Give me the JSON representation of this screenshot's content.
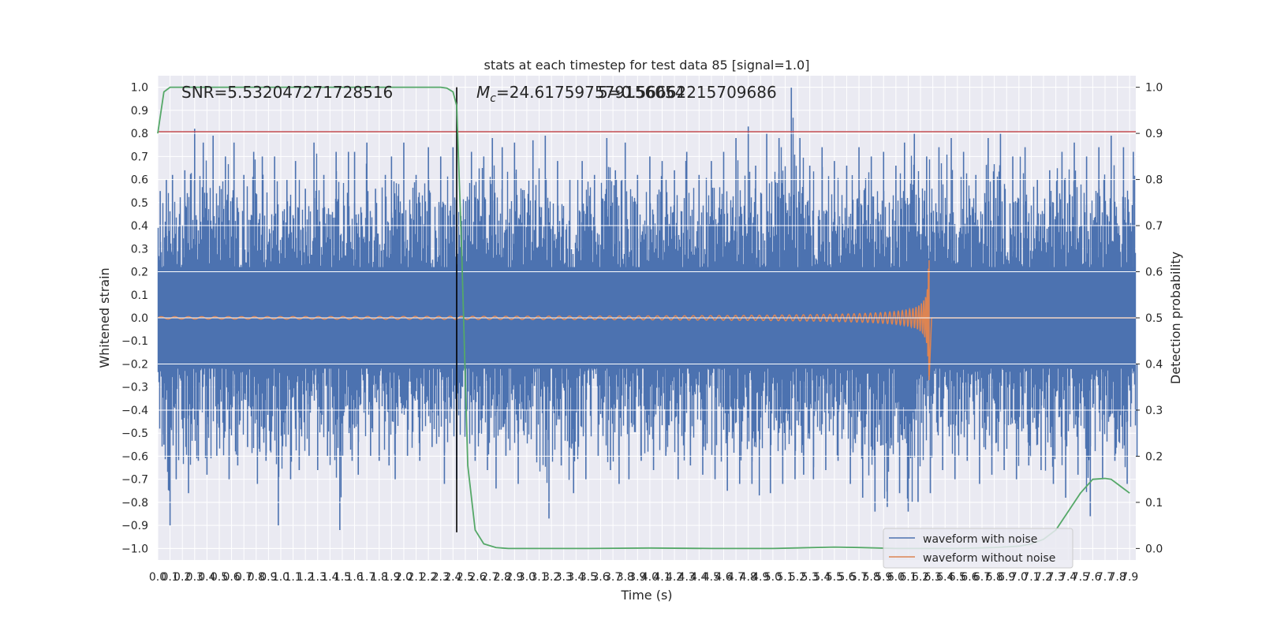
{
  "chart_data": {
    "type": "line",
    "title": "stats at each timestep for test data 85 [signal=1.0]",
    "xlabel": "Time (s)",
    "ylabel_left": "Whitened strain",
    "ylabel_right": "Detection probability",
    "xlim": [
      0.0,
      7.95
    ],
    "ylim_left": [
      -1.05,
      1.05
    ],
    "ylim_right": [
      -0.025,
      1.025
    ],
    "x_ticks": [
      0.0,
      0.1,
      0.2,
      0.3,
      0.4,
      0.5,
      0.6,
      0.7,
      0.8,
      0.9,
      1.0,
      1.1,
      1.2,
      1.3,
      1.4,
      1.5,
      1.6,
      1.7,
      1.8,
      1.9,
      2.0,
      2.1,
      2.2,
      2.3,
      2.4,
      2.5,
      2.6,
      2.7,
      2.8,
      2.9,
      3.0,
      3.1,
      3.2,
      3.3,
      3.4,
      3.5,
      3.6,
      3.7,
      3.8,
      3.9,
      4.0,
      4.1,
      4.2,
      4.3,
      4.4,
      4.5,
      4.6,
      4.7,
      4.8,
      4.9,
      5.0,
      5.1,
      5.2,
      5.3,
      5.4,
      5.5,
      5.6,
      5.7,
      5.8,
      5.9,
      6.0,
      6.1,
      6.2,
      6.3,
      6.4,
      6.5,
      6.6,
      6.7,
      6.8,
      6.9,
      7.0,
      7.1,
      7.2,
      7.3,
      7.4,
      7.5,
      7.6,
      7.7,
      7.8,
      7.9
    ],
    "y_ticks_left": [
      -1.0,
      -0.9,
      -0.8,
      -0.7,
      -0.6,
      -0.5,
      -0.4,
      -0.3,
      -0.2,
      -0.1,
      0.0,
      0.1,
      0.2,
      0.3,
      0.4,
      0.5,
      0.6,
      0.7,
      0.8,
      0.9,
      1.0
    ],
    "y_ticks_right": [
      0.0,
      0.1,
      0.2,
      0.3,
      0.4,
      0.5,
      0.6,
      0.7,
      0.8,
      0.9,
      1.0
    ],
    "grid": true,
    "legend_position": "lower-right",
    "annotations": {
      "snr": "SNR=5.532047271728516",
      "mc_prefix": "M",
      "mc_sub": "c",
      "mc_value": "=24.617597579156054",
      "overlap_value": "5=0.56662215709686"
    },
    "marker_time": 2.43,
    "threshold_left": 0.807,
    "series": [
      {
        "name": "waveform with noise",
        "color": "#4c72b0",
        "description_peaks_x": [
          0.02,
          0.07,
          0.12,
          0.22,
          0.3,
          0.37,
          0.45,
          0.55,
          0.62,
          0.7,
          0.78,
          0.85,
          0.95,
          1.05,
          1.12,
          1.2,
          1.27,
          1.35,
          1.45,
          1.55,
          1.6,
          1.7,
          1.77,
          1.85,
          1.9,
          2.0,
          2.1,
          2.2,
          2.3,
          2.4,
          2.55,
          2.65,
          2.72,
          2.8,
          2.9,
          3.05,
          3.15,
          3.25,
          3.35,
          3.45,
          3.55,
          3.65,
          3.72,
          3.8,
          3.9,
          4.0,
          4.1,
          4.2,
          4.3,
          4.4,
          4.5,
          4.6,
          4.7,
          4.8,
          4.86,
          4.95,
          5.05,
          5.15,
          5.22,
          5.3,
          5.4,
          5.5,
          5.6,
          5.7,
          5.8,
          5.9,
          6.0,
          6.07,
          6.15,
          6.25,
          6.35,
          6.45,
          6.55,
          6.65,
          6.75,
          6.85,
          6.95,
          7.05,
          7.15,
          7.25,
          7.35,
          7.45,
          7.55,
          7.65,
          7.75,
          7.85,
          7.93
        ],
        "description_peaks_top": [
          0.55,
          0.6,
          0.62,
          0.64,
          0.82,
          0.76,
          0.79,
          0.7,
          0.76,
          0.62,
          0.72,
          0.7,
          0.7,
          0.6,
          0.68,
          0.56,
          0.76,
          0.62,
          0.72,
          0.72,
          0.72,
          0.76,
          0.56,
          0.62,
          0.7,
          0.76,
          0.62,
          0.74,
          0.7,
          0.74,
          0.72,
          0.7,
          0.78,
          0.74,
          0.76,
          0.77,
          0.79,
          0.68,
          0.6,
          0.68,
          0.62,
          0.78,
          0.64,
          0.76,
          0.62,
          0.7,
          0.68,
          0.64,
          0.72,
          0.62,
          0.68,
          0.72,
          0.78,
          0.83,
          0.66,
          0.8,
          0.78,
          1.0,
          0.78,
          0.66,
          0.74,
          0.68,
          0.66,
          0.74,
          0.7,
          0.72,
          0.66,
          0.76,
          0.8,
          0.7,
          0.74,
          0.78,
          0.72,
          0.62,
          0.78,
          0.8,
          0.7,
          0.74,
          0.6,
          0.64,
          0.72,
          0.76,
          0.7,
          0.74,
          0.79,
          0.74,
          0.72
        ],
        "description_peaks_bottom": [
          -0.55,
          -0.9,
          -0.7,
          -0.76,
          -0.62,
          -0.68,
          -0.6,
          -0.7,
          -0.64,
          -0.56,
          -0.72,
          -0.62,
          -0.9,
          -0.7,
          -0.66,
          -0.6,
          -0.66,
          -0.6,
          -0.92,
          -0.62,
          -0.68,
          -0.6,
          -0.62,
          -0.64,
          -0.7,
          -0.6,
          -0.62,
          -0.56,
          -0.72,
          -0.7,
          -0.62,
          -0.66,
          -0.74,
          -0.6,
          -0.72,
          -0.6,
          -0.87,
          -0.64,
          -0.76,
          -0.7,
          -0.6,
          -0.66,
          -0.72,
          -0.7,
          -0.62,
          -0.66,
          -0.6,
          -0.7,
          -0.64,
          -0.68,
          -0.7,
          -0.75,
          -0.72,
          -0.72,
          -0.77,
          -0.76,
          -0.72,
          -0.7,
          -0.68,
          -0.7,
          -0.66,
          -0.62,
          -0.72,
          -0.78,
          -0.84,
          -0.82,
          -0.76,
          -0.84,
          -0.8,
          -0.76,
          -0.66,
          -0.7,
          -0.62,
          -0.72,
          -0.68,
          -0.66,
          -0.7,
          -0.64,
          -0.66,
          -0.72,
          -0.78,
          -0.68,
          -0.86,
          -0.7,
          -0.62,
          -0.72,
          -0.6
        ]
      },
      {
        "name": "waveform without noise",
        "color": "#dd8452",
        "chirp_start": 0.0,
        "chirp_end": 6.27,
        "amplitude_start": 0.005,
        "amplitude_peak": 0.25,
        "amplitude_trough": -0.27
      },
      {
        "name": "detection probability",
        "color": "#55a868",
        "axis": "right",
        "x": [
          0.0,
          0.05,
          0.1,
          0.2,
          0.5,
          1.0,
          1.5,
          2.0,
          2.2,
          2.3,
          2.35,
          2.4,
          2.43,
          2.47,
          2.52,
          2.58,
          2.65,
          2.75,
          2.85,
          3.0,
          3.5,
          4.0,
          4.5,
          5.0,
          5.5,
          5.7,
          6.0,
          6.5,
          6.8,
          7.0,
          7.1,
          7.2,
          7.3,
          7.4,
          7.5,
          7.6,
          7.7,
          7.75,
          7.8,
          7.85,
          7.9
        ],
        "y": [
          0.9,
          0.99,
          1.0,
          1.0,
          1.0,
          1.0,
          1.0,
          1.0,
          1.0,
          1.0,
          0.998,
          0.99,
          0.96,
          0.65,
          0.18,
          0.04,
          0.01,
          0.002,
          0.0,
          0.0,
          0.0,
          0.001,
          0.0,
          0.0,
          0.003,
          0.002,
          0.0,
          0.0,
          0.002,
          0.005,
          0.01,
          0.02,
          0.04,
          0.08,
          0.12,
          0.15,
          0.152,
          0.15,
          0.14,
          0.13,
          0.12
        ]
      }
    ]
  }
}
